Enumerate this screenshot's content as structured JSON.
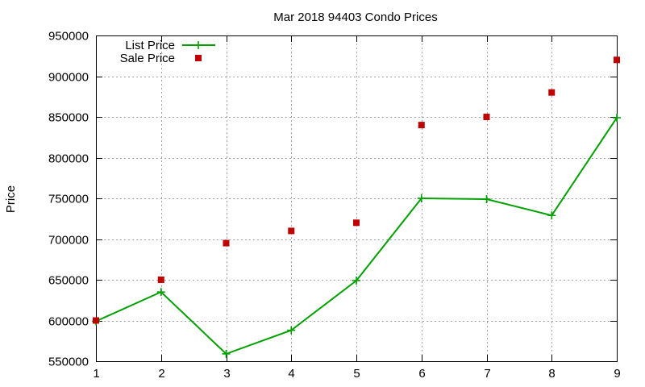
{
  "chart_data": {
    "type": "line",
    "title": "Mar 2018 94403 Condo Prices",
    "xlabel": "",
    "ylabel": "Price",
    "xlim": [
      1,
      9
    ],
    "ylim": [
      550000,
      950000
    ],
    "x_ticks": [
      "1",
      "2",
      "3",
      "4",
      "5",
      "6",
      "7",
      "8",
      "9"
    ],
    "y_ticks": [
      "550000",
      "600000",
      "650000",
      "700000",
      "750000",
      "800000",
      "850000",
      "900000",
      "950000"
    ],
    "grid": true,
    "legend_position": "top-left",
    "series": [
      {
        "name": "List Price",
        "style": "line-with-plus-markers",
        "color": "#00a000",
        "x": [
          1,
          2,
          3,
          4,
          5,
          6,
          7,
          8,
          9
        ],
        "values": [
          599000,
          635000,
          559000,
          588000,
          649000,
          750000,
          749000,
          729000,
          849000
        ]
      },
      {
        "name": "Sale Price",
        "style": "square-markers",
        "color": "#c00000",
        "x": [
          1,
          2,
          3,
          4,
          5,
          6,
          7,
          8,
          9
        ],
        "values": [
          600000,
          650000,
          695000,
          710000,
          720000,
          840000,
          850000,
          880000,
          920000
        ]
      }
    ]
  }
}
